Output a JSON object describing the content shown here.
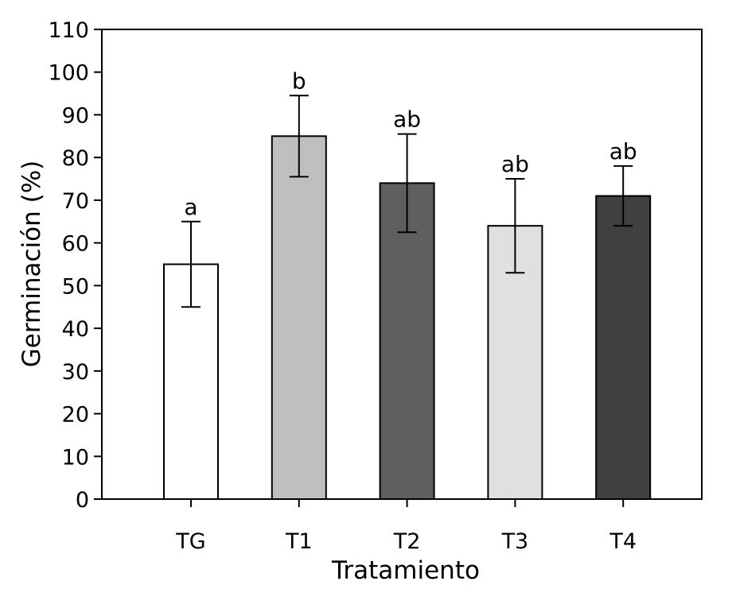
{
  "chart_data": {
    "type": "bar",
    "categories": [
      "TG",
      "T1",
      "T2",
      "T3",
      "T4"
    ],
    "values": [
      55,
      85,
      74,
      64,
      71
    ],
    "errors": [
      10,
      9.5,
      11.5,
      11,
      7
    ],
    "significance_labels": [
      "a",
      "b",
      "ab",
      "ab",
      "ab"
    ],
    "colors": [
      "#ffffff",
      "#bfbfbf",
      "#5f5f5f",
      "#e0e0e0",
      "#404040"
    ],
    "xlabel": "Tratamiento",
    "ylabel": "Germinación (%)",
    "ylim": [
      0,
      110
    ],
    "yticks": [
      0,
      10,
      20,
      30,
      40,
      50,
      60,
      70,
      80,
      90,
      100,
      110
    ],
    "grid": false,
    "legend": "none"
  }
}
